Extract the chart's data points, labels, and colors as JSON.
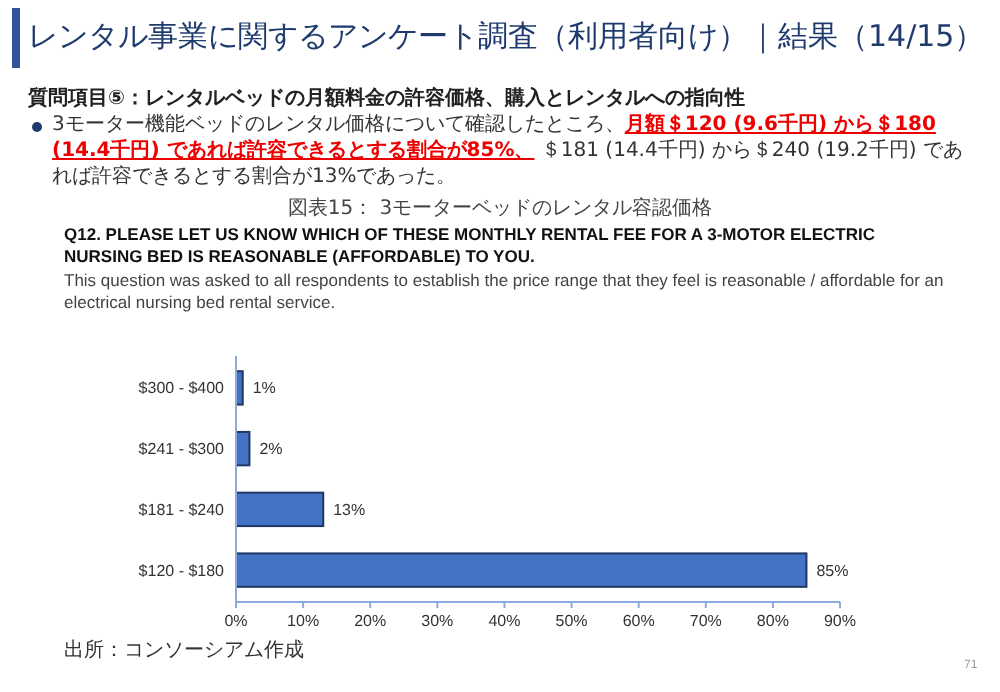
{
  "chart_data": {
    "type": "bar",
    "orientation": "horizontal",
    "title": "レンタル事業に関するアンケート調査（利用者向け）｜結果（14/15）",
    "subtitle": "Q12. PLEASE LET US KNOW WHICH OF THESE MONTHLY RENTAL FEE FOR A 3-MOTOR ELECTRIC NURSING BED IS REASONABLE (AFFORDABLE) TO YOU.",
    "annotations": [
      "質問項目⑤：レンタルベッドの月額料金の許容価格、購入とレンタルへの指向性",
      "3モーター機能ベッドのレンタル価格について確認したところ、",
      "月額＄120 (9.6千円) から＄180 (14.4千円) であれば許容できるとする割合が85%、",
      " ＄181 (14.4千円) から＄240 (19.2千円) であれば許容できるとする割合が13%であった。",
      "図表15： 3モーターベッドのレンタル容認価格",
      "This question was asked to all respondents to establish the price range that they feel is reasonable / affordable for an electrical nursing bed rental service.",
      "出所：コンソーシアム作成",
      "71"
    ],
    "categories": [
      "$300 - $400",
      "$241 - $300",
      "$181 - $240",
      "$120 - $180"
    ],
    "values": [
      1,
      2,
      13,
      85
    ],
    "value_labels": [
      "1%",
      "2%",
      "13%",
      "85%"
    ],
    "color": "#4472c4",
    "xlim": [
      0,
      90
    ],
    "xticks": [
      {
        "value": 0,
        "label": "0%"
      },
      {
        "value": 10,
        "label": "10%"
      },
      {
        "value": 20,
        "label": "20%"
      },
      {
        "value": 30,
        "label": "30%"
      },
      {
        "value": 40,
        "label": "40%"
      },
      {
        "value": 50,
        "label": "50%"
      },
      {
        "value": 60,
        "label": "60%"
      },
      {
        "value": 70,
        "label": "70%"
      },
      {
        "value": 80,
        "label": "80%"
      },
      {
        "value": 90,
        "label": "90%"
      }
    ],
    "grid": false
  }
}
